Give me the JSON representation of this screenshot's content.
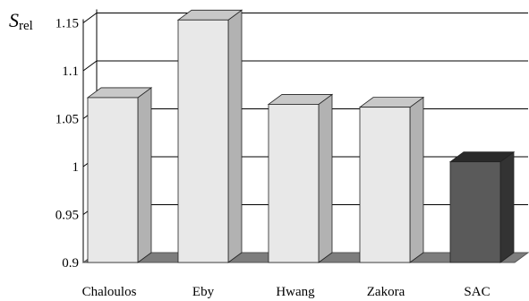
{
  "chart_data": {
    "type": "bar",
    "title": "",
    "ylabel": {
      "main": "S",
      "sub": "rel"
    },
    "xlabel": "",
    "categories": [
      "Chaloulos",
      "Eby",
      "Hwang",
      "Zakora",
      "SAC"
    ],
    "values": [
      1.072,
      1.153,
      1.065,
      1.062,
      1.005
    ],
    "ylim": [
      0.9,
      1.15
    ],
    "yticks": [
      "0.9",
      "0.95",
      "1",
      "1.05",
      "1.1",
      "1.15"
    ],
    "ytick_values": [
      0.9,
      0.95,
      1.0,
      1.05,
      1.1,
      1.15
    ],
    "grid": true,
    "style": "3d-bar",
    "colors": {
      "default_front": "#e8e8e8",
      "default_side": "#b2b2b2",
      "default_top": "#c8c8c8",
      "highlight_front": "#5a5a5a",
      "highlight_side": "#333333",
      "highlight_top": "#2a2a2a",
      "floor": "#7d7d7d",
      "grid": "#000000"
    },
    "highlight_category": "SAC"
  }
}
